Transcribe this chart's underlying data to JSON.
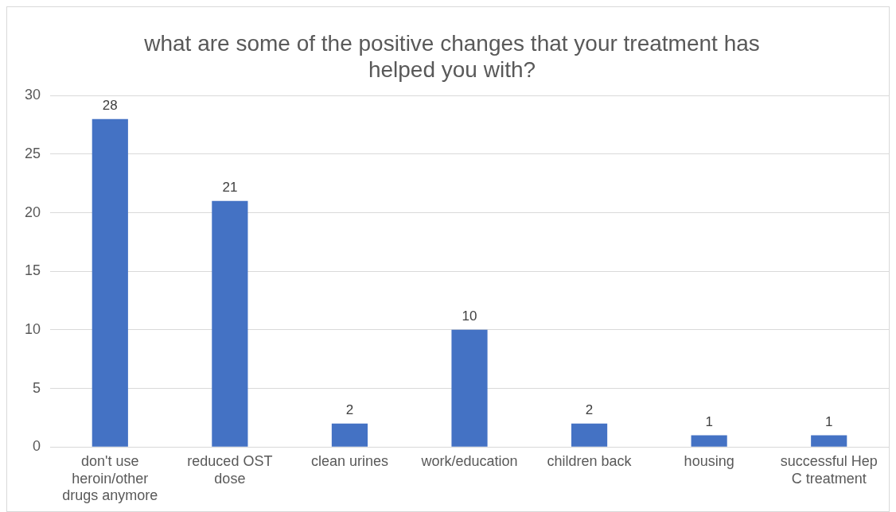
{
  "chart_data": {
    "type": "bar",
    "title": "what are some of the positive changes that your treatment has helped you with?",
    "categories": [
      "don't use heroin/other drugs anymore",
      "reduced OST dose",
      "clean urines",
      "work/education",
      "children back",
      "housing",
      "successful Hep C treatment"
    ],
    "values": [
      28,
      21,
      2,
      10,
      2,
      1,
      1
    ],
    "color": "#4472c4",
    "ylim": [
      0,
      30
    ],
    "yticks": [
      0,
      5,
      10,
      15,
      20,
      25,
      30
    ],
    "grid": "y",
    "data_labels": true,
    "legend": false
  }
}
